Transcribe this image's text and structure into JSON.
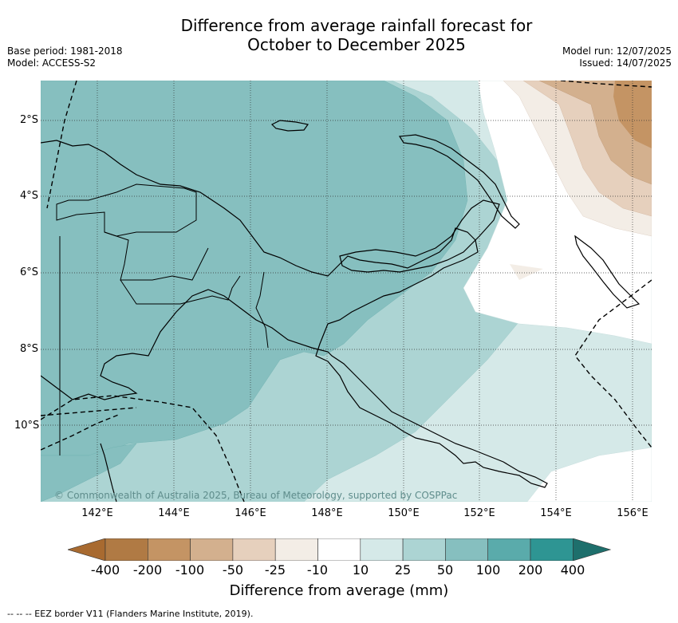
{
  "title_line1": "Difference from average rainfall forecast for",
  "title_line2": "October to December 2025",
  "meta_left": [
    "Base period: 1981-2018",
    "Model: ACCESS-S2"
  ],
  "meta_right": [
    "Model run: 12/07/2025",
    "Issued: 14/07/2025"
  ],
  "copyright": "© Commonwealth of Australia 2025, Bureau of Meteorology, supported by COSPPac",
  "x_ticks": [
    "142°E",
    "144°E",
    "146°E",
    "148°E",
    "150°E",
    "152°E",
    "154°E",
    "156°E"
  ],
  "y_ticks": [
    "2°S",
    "4°S",
    "6°S",
    "8°S",
    "10°S"
  ],
  "colorbar": {
    "title": "Difference from average (mm)",
    "labels": [
      "-400",
      "-200",
      "-100",
      "-50",
      "-25",
      "-10",
      "10",
      "25",
      "50",
      "100",
      "200",
      "400"
    ],
    "colors": [
      "#a86a30",
      "#b07a44",
      "#c49464",
      "#d3b08e",
      "#e6d0bd",
      "#f3ede6",
      "#ffffff",
      "#d5e9e8",
      "#acd4d3",
      "#86bfbf",
      "#5aabab",
      "#2e9593",
      "#1e6f6c"
    ]
  },
  "footnote": "--  --  -- EEZ border V11 (Flanders Marine Institute, 2019)."
}
